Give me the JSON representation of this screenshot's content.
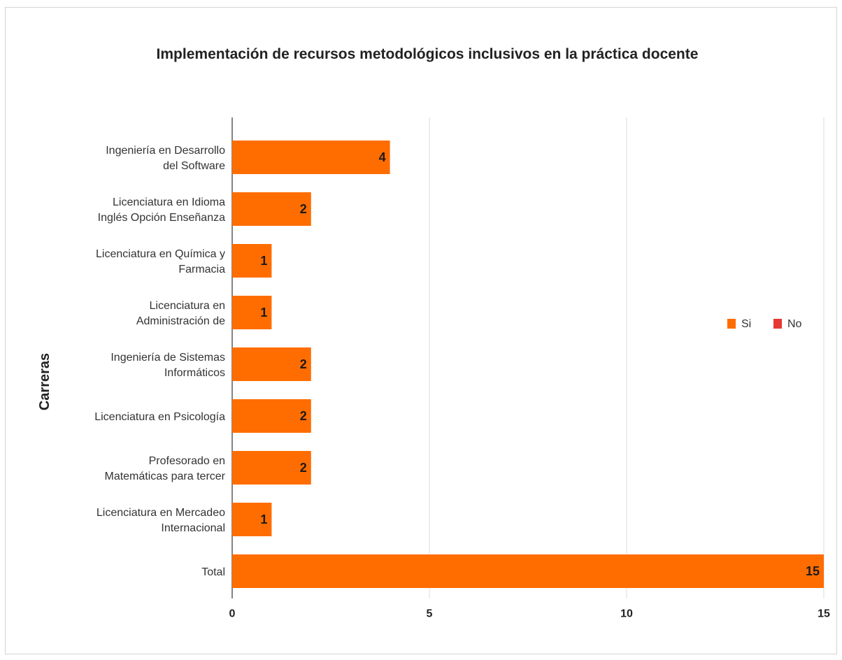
{
  "chart_data": {
    "type": "bar",
    "orientation": "horizontal",
    "title": "Implementación de recursos metodológicos inclusivos en la práctica docente",
    "ylabel": "Carreras",
    "xlabel": "",
    "categories": [
      [
        "Ingeniería en Desarrollo",
        "del Software"
      ],
      [
        "Licenciatura en Idioma",
        "Inglés Opción Enseñanza"
      ],
      [
        "Licenciatura en Química y",
        "Farmacia"
      ],
      [
        "Licenciatura en",
        "Administración de"
      ],
      [
        "Ingeniería de Sistemas",
        "Informáticos"
      ],
      [
        "Licenciatura en Psicología"
      ],
      [
        "Profesorado en",
        "Matemáticas para tercer"
      ],
      [
        "Licenciatura en Mercadeo",
        "Internacional"
      ],
      [
        "Total"
      ]
    ],
    "series": [
      {
        "name": "Si",
        "color": "#ff6d00",
        "values": [
          4,
          2,
          1,
          1,
          2,
          2,
          2,
          1,
          15
        ]
      },
      {
        "name": "No",
        "color": "#e53935",
        "values": [
          0,
          0,
          0,
          0,
          0,
          0,
          0,
          0,
          0
        ]
      }
    ],
    "xlim": [
      0,
      15
    ],
    "xticks": [
      0,
      5,
      10,
      15
    ],
    "grid": true,
    "legend_position": "right"
  }
}
